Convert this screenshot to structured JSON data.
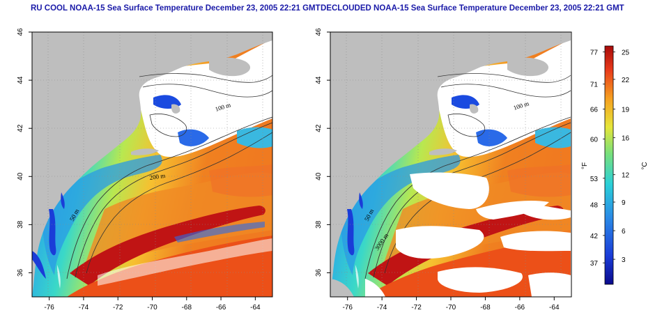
{
  "panels": [
    {
      "id": "left",
      "title": "RU COOL NOAA-15 Sea Surface Temperature December 23, 2005 22:21 GMT"
    },
    {
      "id": "right",
      "title": "DECLOUDED NOAA-15 Sea Surface Temperature December 23, 2005 22:21 GMT"
    }
  ],
  "axes": {
    "lon_ticks": [
      "-76",
      "-74",
      "-72",
      "-70",
      "-68",
      "-66",
      "-64"
    ],
    "lat_ticks": [
      "36",
      "38",
      "40",
      "42",
      "44",
      "46"
    ]
  },
  "contour_labels": [
    "100 m",
    "100 m",
    "200 m",
    "50 m",
    "50 m",
    "3000 m"
  ],
  "colorbar": {
    "unit_f": "°F",
    "unit_c": "°C",
    "f_ticks": [
      "77",
      "71",
      "66",
      "60",
      "53",
      "48",
      "42",
      "37"
    ],
    "c_ticks": [
      "25",
      "22",
      "19",
      "16",
      "12",
      "9",
      "6",
      "3"
    ],
    "colors": [
      "#0a0a8c",
      "#1a3cd8",
      "#2a8ae6",
      "#2ad0d8",
      "#7ae07a",
      "#e6e63a",
      "#f6a020",
      "#e83a1a",
      "#a80a0a"
    ]
  }
}
